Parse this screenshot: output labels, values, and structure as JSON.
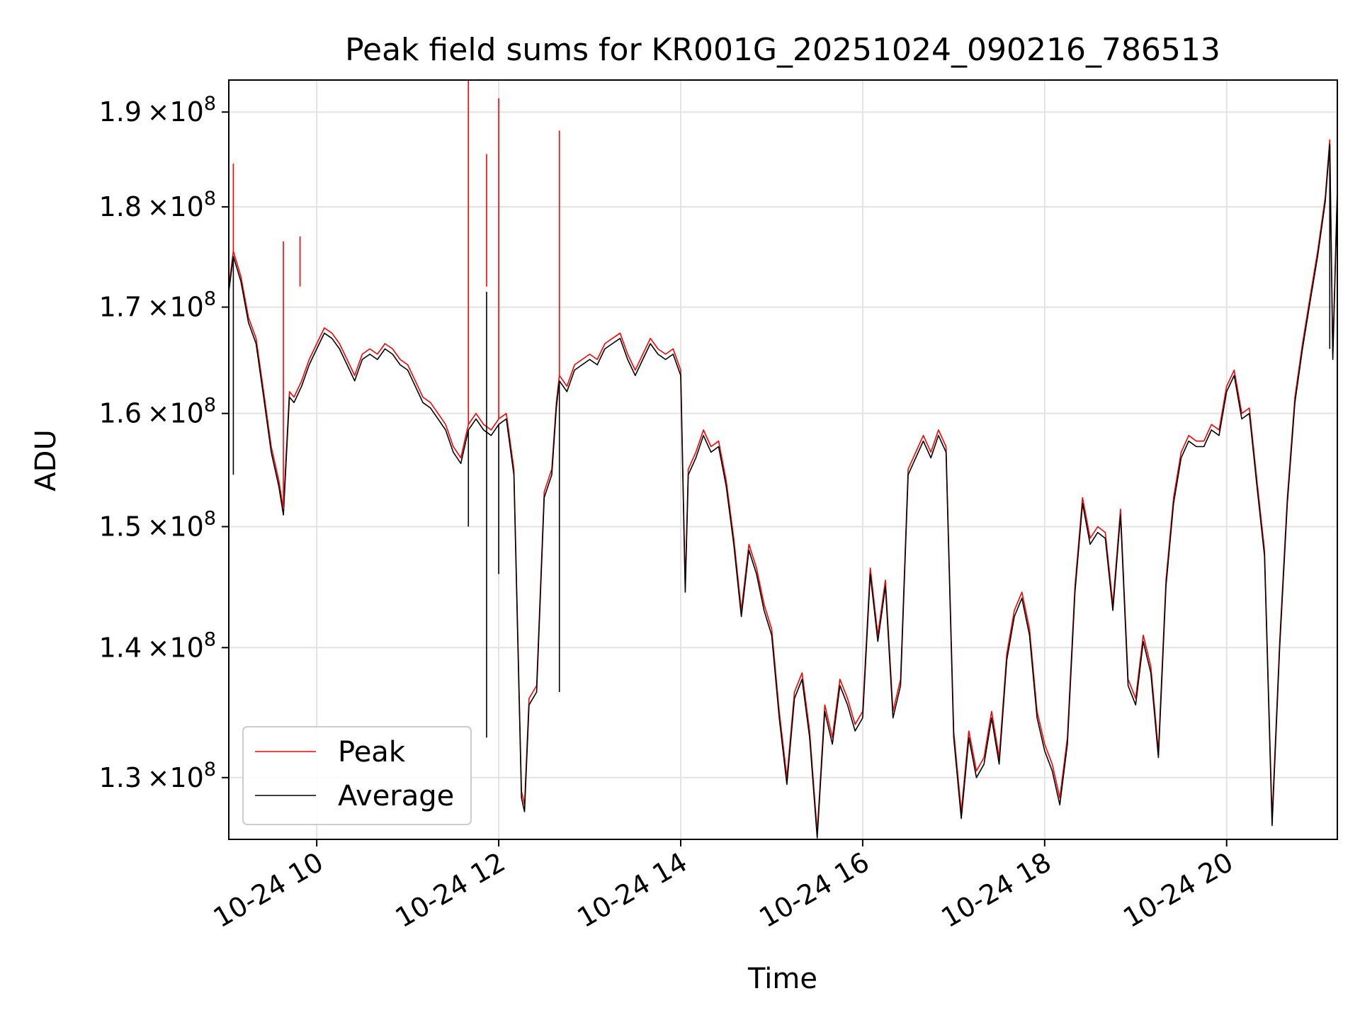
{
  "chart_data": {
    "type": "line",
    "title": "Peak field sums for KR001G_20251024_090216_786513",
    "xlabel": "Time",
    "ylabel": "ADU",
    "y_scale": "log",
    "xlim": [
      "2025-10-24 09:02",
      "2025-10-24 21:13"
    ],
    "ylim": [
      125500000,
      193500000
    ],
    "x_ticks": [
      {
        "x": "2025-10-24 10:00",
        "label": "10-24 10"
      },
      {
        "x": "2025-10-24 12:00",
        "label": "10-24 12"
      },
      {
        "x": "2025-10-24 14:00",
        "label": "10-24 14"
      },
      {
        "x": "2025-10-24 16:00",
        "label": "10-24 16"
      },
      {
        "x": "2025-10-24 18:00",
        "label": "10-24 18"
      },
      {
        "x": "2025-10-24 20:00",
        "label": "10-24 20"
      }
    ],
    "y_ticks": [
      {
        "y": 130000000,
        "base": "1.3",
        "exponent": "8"
      },
      {
        "y": 140000000,
        "base": "1.4",
        "exponent": "8"
      },
      {
        "y": 150000000,
        "base": "1.5",
        "exponent": "8"
      },
      {
        "y": 160000000,
        "base": "1.6",
        "exponent": "8"
      },
      {
        "y": 170000000,
        "base": "1.7",
        "exponent": "8"
      },
      {
        "y": 180000000,
        "base": "1.8",
        "exponent": "8"
      },
      {
        "y": 190000000,
        "base": "1.9",
        "exponent": "8"
      }
    ],
    "times_symbol": "×10",
    "grid": true,
    "legend_position": "lower-left",
    "x": [
      "09:02",
      "09:05",
      "09:10",
      "09:15",
      "09:20",
      "09:25",
      "09:30",
      "09:35",
      "09:38",
      "09:42",
      "09:45",
      "09:50",
      "09:55",
      "10:00",
      "10:05",
      "10:10",
      "10:15",
      "10:20",
      "10:25",
      "10:30",
      "10:35",
      "10:40",
      "10:45",
      "10:50",
      "10:55",
      "11:00",
      "11:05",
      "11:10",
      "11:15",
      "11:20",
      "11:25",
      "11:30",
      "11:35",
      "11:40",
      "11:45",
      "11:50",
      "11:55",
      "12:00",
      "12:05",
      "12:10",
      "12:15",
      "12:17",
      "12:20",
      "12:25",
      "12:30",
      "12:35",
      "12:38",
      "12:40",
      "12:45",
      "12:50",
      "12:55",
      "13:00",
      "13:05",
      "13:10",
      "13:15",
      "13:20",
      "13:25",
      "13:30",
      "13:35",
      "13:40",
      "13:45",
      "13:50",
      "13:55",
      "14:00",
      "14:03",
      "14:05",
      "14:10",
      "14:15",
      "14:20",
      "14:25",
      "14:30",
      "14:35",
      "14:40",
      "14:45",
      "14:50",
      "14:55",
      "15:00",
      "15:05",
      "15:10",
      "15:15",
      "15:20",
      "15:25",
      "15:30",
      "15:35",
      "15:40",
      "15:45",
      "15:50",
      "15:55",
      "16:00",
      "16:05",
      "16:10",
      "16:15",
      "16:20",
      "16:25",
      "16:30",
      "16:35",
      "16:40",
      "16:45",
      "16:50",
      "16:55",
      "17:00",
      "17:05",
      "17:10",
      "17:15",
      "17:20",
      "17:25",
      "17:30",
      "17:35",
      "17:40",
      "17:45",
      "17:50",
      "17:55",
      "18:00",
      "18:05",
      "18:10",
      "18:15",
      "18:20",
      "18:25",
      "18:30",
      "18:35",
      "18:40",
      "18:45",
      "18:50",
      "18:55",
      "19:00",
      "19:05",
      "19:10",
      "19:15",
      "19:20",
      "19:25",
      "19:30",
      "19:35",
      "19:40",
      "19:45",
      "19:50",
      "19:55",
      "20:00",
      "20:05",
      "20:10",
      "20:15",
      "20:20",
      "20:25",
      "20:30",
      "20:35",
      "20:40",
      "20:45",
      "20:50",
      "20:55",
      "21:00",
      "21:05",
      "21:08",
      "21:10",
      "21:13"
    ],
    "series": [
      {
        "name": "Peak",
        "color": "#ff0000",
        "values": [
          172000000,
          175500000,
          173000000,
          169000000,
          167000000,
          162000000,
          157000000,
          154000000,
          151500000,
          162000000,
          161500000,
          163000000,
          165000000,
          166500000,
          168000000,
          167500000,
          166500000,
          165000000,
          163500000,
          165500000,
          166000000,
          165500000,
          166500000,
          166000000,
          165000000,
          164500000,
          163000000,
          161500000,
          161000000,
          160000000,
          159000000,
          157000000,
          156000000,
          159000000,
          160000000,
          159000000,
          158500000,
          159500000,
          160000000,
          155000000,
          129000000,
          128000000,
          136000000,
          137000000,
          153000000,
          155000000,
          161000000,
          163500000,
          162500000,
          164500000,
          165000000,
          165500000,
          165000000,
          166500000,
          167000000,
          167500000,
          165500000,
          164000000,
          165500000,
          167000000,
          166000000,
          165500000,
          166000000,
          164000000,
          145000000,
          155000000,
          156500000,
          158500000,
          157000000,
          157500000,
          154000000,
          149000000,
          143000000,
          148500000,
          146500000,
          143500000,
          141500000,
          135000000,
          130000000,
          136500000,
          138000000,
          133500000,
          126000000,
          135500000,
          133000000,
          137500000,
          136000000,
          134000000,
          135000000,
          146500000,
          141000000,
          145500000,
          135000000,
          137500000,
          155000000,
          156500000,
          158000000,
          156500000,
          158500000,
          157000000,
          133500000,
          127500000,
          133500000,
          130500000,
          131500000,
          135000000,
          131500000,
          139500000,
          143000000,
          144500000,
          141500000,
          135000000,
          132500000,
          131000000,
          128500000,
          133000000,
          145000000,
          152500000,
          149000000,
          150000000,
          149500000,
          143500000,
          151500000,
          137500000,
          136000000,
          141000000,
          138500000,
          132000000,
          145500000,
          152500000,
          156500000,
          158000000,
          157500000,
          157500000,
          159000000,
          158500000,
          162500000,
          164000000,
          160000000,
          160500000,
          154000000,
          148000000,
          127000000,
          140500000,
          152500000,
          161500000,
          166500000,
          171000000,
          175500000,
          181000000,
          187000000,
          165500000,
          182000000
        ]
      },
      {
        "name": "Average",
        "color": "#000000",
        "values": [
          171500000,
          175000000,
          172500000,
          168500000,
          166500000,
          161500000,
          156500000,
          153500000,
          151000000,
          161500000,
          161000000,
          162500000,
          164500000,
          166000000,
          167500000,
          167000000,
          166000000,
          164500000,
          163000000,
          165000000,
          165500000,
          165000000,
          166000000,
          165500000,
          164500000,
          164000000,
          162500000,
          161000000,
          160500000,
          159500000,
          158500000,
          156500000,
          155500000,
          158500000,
          159500000,
          158500000,
          158000000,
          159000000,
          159500000,
          154500000,
          128500000,
          127500000,
          135500000,
          136500000,
          152500000,
          154500000,
          160500000,
          163000000,
          162000000,
          164000000,
          164500000,
          165000000,
          164500000,
          166000000,
          166500000,
          167000000,
          165000000,
          163500000,
          165000000,
          166500000,
          165500000,
          165000000,
          165500000,
          163500000,
          144500000,
          154500000,
          156000000,
          158000000,
          156500000,
          157000000,
          153500000,
          148500000,
          142500000,
          148000000,
          146000000,
          143000000,
          141000000,
          134500000,
          129500000,
          136000000,
          137500000,
          133000000,
          125600000,
          135000000,
          132500000,
          137000000,
          135500000,
          133500000,
          134500000,
          146000000,
          140500000,
          145000000,
          134500000,
          137000000,
          154500000,
          156000000,
          157500000,
          156000000,
          158000000,
          156500000,
          133000000,
          127000000,
          133000000,
          130000000,
          131000000,
          134500000,
          131000000,
          139000000,
          142500000,
          144000000,
          141000000,
          134500000,
          132000000,
          130500000,
          128000000,
          132500000,
          144500000,
          152000000,
          148500000,
          149500000,
          149000000,
          143000000,
          151000000,
          137000000,
          135500000,
          140500000,
          138000000,
          131500000,
          145000000,
          152000000,
          156000000,
          157500000,
          157000000,
          157000000,
          158500000,
          158000000,
          162000000,
          163500000,
          159500000,
          160000000,
          153500000,
          147500000,
          126500000,
          140000000,
          152000000,
          161000000,
          166000000,
          170500000,
          175000000,
          180500000,
          186500000,
          165000000,
          181500000
        ]
      }
    ],
    "peak_spikes": [
      {
        "x": "09:05",
        "value": 184500000
      },
      {
        "x": "09:38",
        "value": 176500000
      },
      {
        "x": "09:49",
        "value": 177000000
      },
      {
        "x": "11:40",
        "value": 193500000
      },
      {
        "x": "11:52",
        "value": 185500000
      },
      {
        "x": "12:00",
        "value": 191500000
      },
      {
        "x": "12:40",
        "value": 188000000
      }
    ],
    "average_dips": [
      {
        "x": "09:05",
        "value": 154500000
      },
      {
        "x": "11:40",
        "value": 150000000
      },
      {
        "x": "11:52",
        "value": 133000000
      },
      {
        "x": "12:00",
        "value": 146000000
      },
      {
        "x": "12:40",
        "value": 136500000
      },
      {
        "x": "21:08",
        "value": 166000000
      }
    ]
  }
}
